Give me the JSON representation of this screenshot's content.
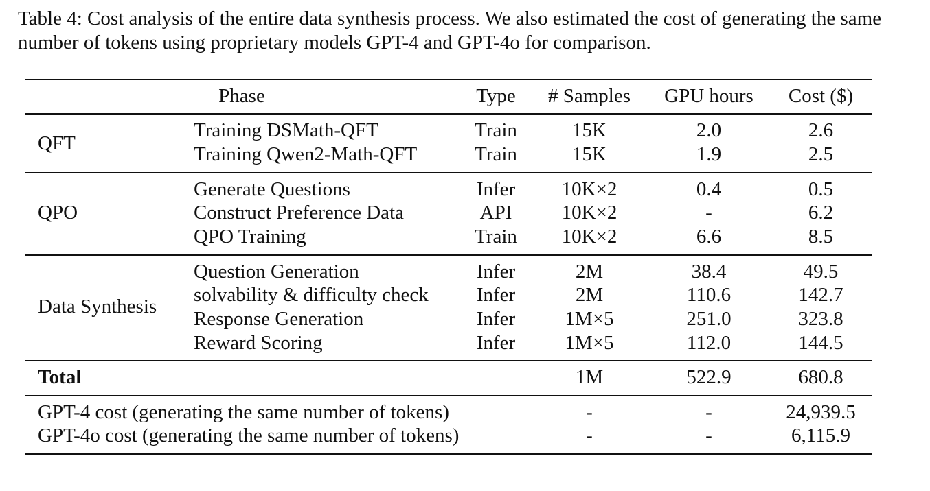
{
  "caption": "Table 4: Cost analysis of the entire data synthesis process. We also estimated the cost of generating the same number of tokens using proprietary models GPT-4 and GPT-4o for comparison.",
  "headers": {
    "phase": "Phase",
    "type": "Type",
    "samples": "# Samples",
    "gpu": "GPU hours",
    "cost": "Cost ($)"
  },
  "groups": [
    {
      "name": "QFT",
      "rows": [
        {
          "phase": "Training DSMath-QFT",
          "type": "Train",
          "samples": "15K",
          "gpu": "2.0",
          "cost": "2.6"
        },
        {
          "phase": "Training Qwen2-Math-QFT",
          "type": "Train",
          "samples": "15K",
          "gpu": "1.9",
          "cost": "2.5"
        }
      ]
    },
    {
      "name": "QPO",
      "rows": [
        {
          "phase": "Generate Questions",
          "type": "Infer",
          "samples": "10K×2",
          "gpu": "0.4",
          "cost": "0.5"
        },
        {
          "phase": "Construct Preference Data",
          "type": "API",
          "samples": "10K×2",
          "gpu": "-",
          "cost": "6.2"
        },
        {
          "phase": "QPO Training",
          "type": "Train",
          "samples": "10K×2",
          "gpu": "6.6",
          "cost": "8.5"
        }
      ]
    },
    {
      "name": "Data Synthesis",
      "rows": [
        {
          "phase": "Question Generation",
          "type": "Infer",
          "samples": "2M",
          "gpu": "38.4",
          "cost": "49.5"
        },
        {
          "phase": "solvability & difficulty check",
          "type": "Infer",
          "samples": "2M",
          "gpu": "110.6",
          "cost": "142.7"
        },
        {
          "phase": "Response Generation",
          "type": "Infer",
          "samples": "1M×5",
          "gpu": "251.0",
          "cost": "323.8"
        },
        {
          "phase": "Reward Scoring",
          "type": "Infer",
          "samples": "1M×5",
          "gpu": "112.0",
          "cost": "144.5"
        }
      ]
    }
  ],
  "total": {
    "label": "Total",
    "samples": "1M",
    "gpu": "522.9",
    "cost": "680.8"
  },
  "comparisons": [
    {
      "label": "GPT-4 cost (generating the same number of tokens)",
      "samples": "-",
      "gpu": "-",
      "cost": "24,939.5"
    },
    {
      "label": "GPT-4o cost (generating the same number of tokens)",
      "samples": "-",
      "gpu": "-",
      "cost": "6,115.9"
    }
  ]
}
